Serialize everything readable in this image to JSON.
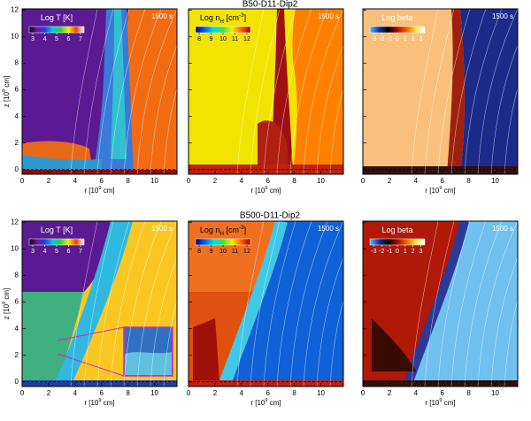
{
  "axes": {
    "xlim": [
      0,
      11.7
    ],
    "ylim": [
      -0.35,
      12.1
    ],
    "xticks": [
      0,
      2,
      4,
      6,
      8,
      10
    ],
    "yticks": [
      0,
      2,
      4,
      6,
      8,
      10,
      12
    ],
    "xlabel": [
      {
        "text": "r [10"
      },
      {
        "text": "9",
        "sup": true
      },
      {
        "text": " cm]"
      }
    ],
    "ylabel": [
      {
        "text": "z [10"
      },
      {
        "text": "9",
        "sup": true
      },
      {
        "text": " cm]"
      }
    ]
  },
  "rows": [
    {
      "title": "B50-D11-Dip2",
      "panels": [
        {
          "label": [
            {
              "text": "Log T [K]"
            }
          ],
          "time": "1500 s",
          "cbar_lim": [
            2.7,
            7.3
          ],
          "cbar_ticks": [
            3,
            4,
            5,
            6,
            7
          ],
          "colormap": [
            "#000000",
            "#6a1a9a",
            "#2040e0",
            "#00c8e0",
            "#30d040",
            "#f0f000",
            "#f04000",
            "#ffffff"
          ]
        },
        {
          "label": [
            {
              "text": "Log n"
            },
            {
              "text": "H",
              "sub": true
            },
            {
              "text": " [cm"
            },
            {
              "text": "-3",
              "sup": true
            },
            {
              "text": "]"
            }
          ],
          "time": "1500 s",
          "cbar_lim": [
            7.7,
            12.3
          ],
          "cbar_ticks": [
            8,
            9,
            10,
            11,
            12
          ],
          "colormap": [
            "#000080",
            "#0060ff",
            "#00e0e0",
            "#40e040",
            "#f0f000",
            "#ff6000",
            "#a00000"
          ]
        },
        {
          "label": [
            {
              "text": "Log beta"
            }
          ],
          "time": "1500 s",
          "cbar_lim": [
            -3.5,
            3.5
          ],
          "cbar_ticks": [
            -3,
            -2,
            -1,
            0,
            1,
            2,
            3
          ],
          "colormap": [
            "#60c0ff",
            "#1030a0",
            "#000000",
            "#a01000",
            "#f06000",
            "#f8e040",
            "#ffffff"
          ]
        }
      ]
    },
    {
      "title": "B500-D11-Dip2",
      "panels": [
        {
          "label": [
            {
              "text": "Log T [K]"
            }
          ],
          "time": "1500 s",
          "cbar_lim": [
            2.7,
            7.3
          ],
          "cbar_ticks": [
            3,
            4,
            5,
            6,
            7
          ],
          "colormap": [
            "#000000",
            "#6a1a9a",
            "#2040e0",
            "#00c8e0",
            "#30d040",
            "#f0f000",
            "#f04000",
            "#ffffff"
          ]
        },
        {
          "label": [
            {
              "text": "Log n"
            },
            {
              "text": "H",
              "sub": true
            },
            {
              "text": " [cm"
            },
            {
              "text": "-3",
              "sup": true
            },
            {
              "text": "]"
            }
          ],
          "time": "1500 s",
          "cbar_lim": [
            7.7,
            12.3
          ],
          "cbar_ticks": [
            8,
            9,
            10,
            11,
            12
          ],
          "colormap": [
            "#000080",
            "#0060ff",
            "#00e0e0",
            "#40e040",
            "#f0f000",
            "#ff6000",
            "#a00000"
          ]
        },
        {
          "label": [
            {
              "text": "Log beta"
            }
          ],
          "time": "1500 s",
          "cbar_lim": [
            -3.5,
            3.5
          ],
          "cbar_ticks": [
            -3,
            -2,
            -1,
            0,
            1,
            2,
            3
          ],
          "colormap": [
            "#60c0ff",
            "#1030a0",
            "#000000",
            "#a01000",
            "#f06000",
            "#f8e040",
            "#ffffff"
          ]
        }
      ]
    }
  ]
}
